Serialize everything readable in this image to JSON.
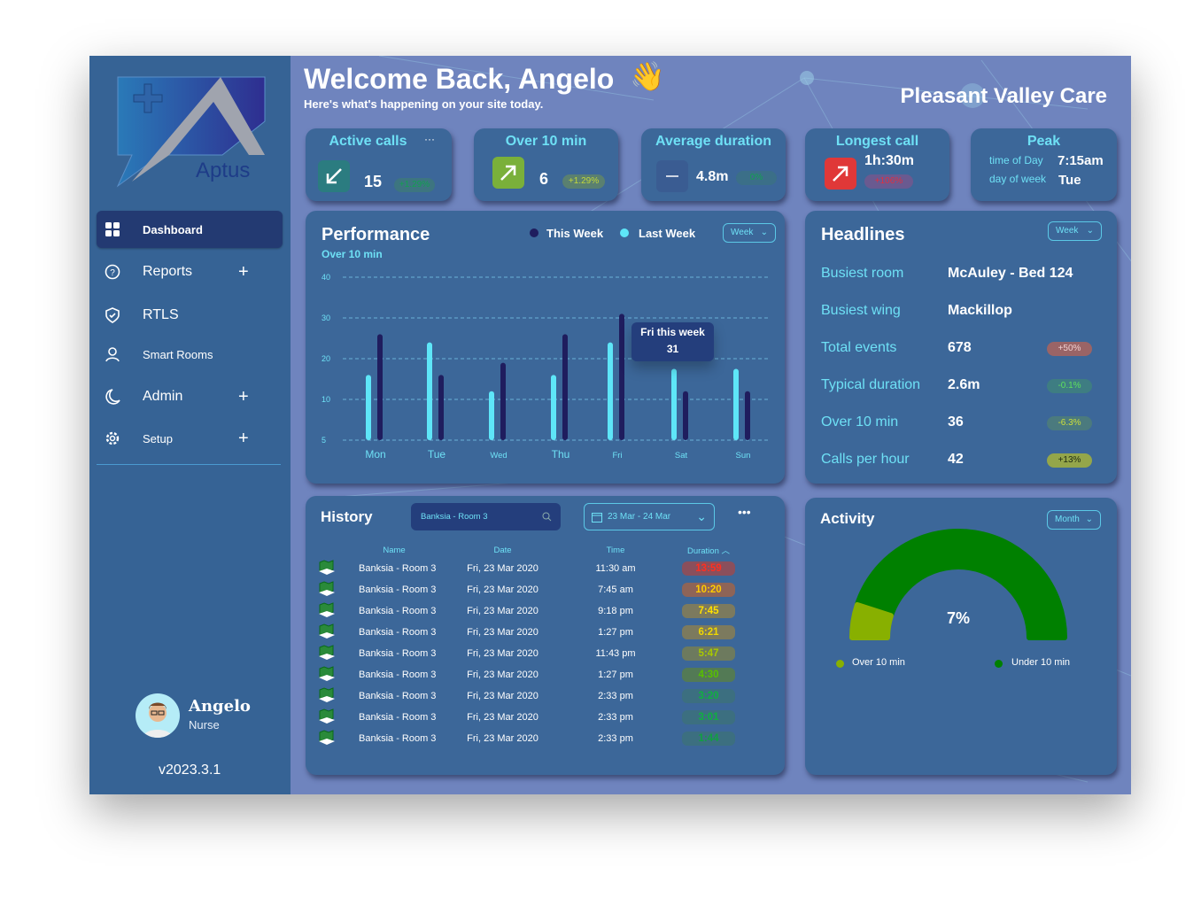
{
  "brand": {
    "logo_text": "Aptus"
  },
  "sidebar": {
    "items": [
      {
        "label": "Dashboard",
        "icon": "grid-icon",
        "active": true
      },
      {
        "label": "Reports",
        "icon": "help-circle-icon",
        "expandable": true
      },
      {
        "label": "RTLS",
        "icon": "shield-check-icon"
      },
      {
        "label": "Smart Rooms",
        "icon": "user-icon"
      },
      {
        "label": "Admin",
        "icon": "moon-icon",
        "expandable": true
      },
      {
        "label": "Setup",
        "icon": "gear-icon",
        "expandable": true
      }
    ],
    "plus": "+",
    "user": {
      "name": "Angelo",
      "role": "Nurse"
    },
    "version": "v2023.3.1"
  },
  "header": {
    "title": "Welcome Back, Angelo",
    "emoji": "👋",
    "subtitle": "Here's what's happening on your site today.",
    "site": "Pleasant Valley Care"
  },
  "kpis": {
    "active_calls": {
      "title": "Active calls",
      "more": "···",
      "value": "15",
      "change": "+1.29%",
      "trend": "down"
    },
    "over10": {
      "title": "Over 10 min",
      "value": "6",
      "change": "+1.29%",
      "trend": "up"
    },
    "avg": {
      "title": "Average duration",
      "value": "4.8m",
      "change": "0%",
      "trend": "flat"
    },
    "longest": {
      "title": "Longest call",
      "value": "1h:30m",
      "change": "+106%",
      "trend": "up"
    },
    "peak": {
      "title": "Peak",
      "time_label": "time of Day",
      "time": "7:15am",
      "day_label": "day of week",
      "day": "Tue"
    }
  },
  "performance": {
    "title": "Performance",
    "subtitle": "Over 10 min",
    "range": "Week",
    "tooltip": {
      "label": "Fri this week",
      "value": "31"
    }
  },
  "chart_data": {
    "type": "bar",
    "categories": [
      "Mon",
      "Tue",
      "Wed",
      "Thu",
      "Fri",
      "Sat",
      "Sun"
    ],
    "series": [
      {
        "name": "This Week",
        "color": "#1f1d5e",
        "values": [
          26,
          16,
          19,
          26,
          31,
          12,
          12
        ]
      },
      {
        "name": "Last Week",
        "color": "#5ee6f8",
        "values": [
          16,
          24,
          12,
          16,
          24,
          17.5,
          17.5
        ]
      }
    ],
    "ytick_labels": [
      "40",
      "30",
      "20",
      "10",
      "5"
    ],
    "ylim": [
      0,
      40
    ],
    "grid": true,
    "legend": "top"
  },
  "headlines": {
    "title": "Headlines",
    "range": "Week",
    "rows": [
      {
        "label": "Busiest room",
        "value": "McAuley - Bed 124"
      },
      {
        "label": "Busiest wing",
        "value": "Mackillop"
      },
      {
        "label": "Total events",
        "value": "678",
        "change": "+50%",
        "bg": "#9a6466",
        "fg": "#f0d0d0"
      },
      {
        "label": "Typical duration",
        "value": "2.6m",
        "change": "-0.1%",
        "bg": "#3e7d82",
        "fg": "#5ee05e"
      },
      {
        "label": "Over 10 min",
        "value": "36",
        "change": "-6.3%",
        "bg": "#4b7a7e",
        "fg": "#cde03a"
      },
      {
        "label": "Calls per hour",
        "value": "42",
        "change": "+13%",
        "bg": "#94a64a",
        "fg": "#1d2a10"
      }
    ]
  },
  "history": {
    "title": "History",
    "search": "Banksia - Room 3",
    "date_range": "23 Mar - 24 Mar",
    "more": "•••",
    "columns": [
      "Name",
      "Date",
      "Time",
      "Duration"
    ],
    "rows": [
      {
        "name": "Banksia - Room 3",
        "date": "Fri, 23 Mar 2020",
        "time": "11:30 am",
        "duration": "13:59",
        "bg": "#8a4f5c",
        "fg": "#ff3020"
      },
      {
        "name": "Banksia - Room 3",
        "date": "Fri, 23 Mar 2020",
        "time": "7:45 am",
        "duration": "10:20",
        "bg": "#8e6457",
        "fg": "#ffcc00"
      },
      {
        "name": "Banksia - Room 3",
        "date": "Fri, 23 Mar 2020",
        "time": "9:18 pm",
        "duration": "7:45",
        "bg": "#7c7a5e",
        "fg": "#ffe000"
      },
      {
        "name": "Banksia - Room 3",
        "date": "Fri, 23 Mar 2020",
        "time": "1:27 pm",
        "duration": "6:21",
        "bg": "#7c7a5e",
        "fg": "#f0d800"
      },
      {
        "name": "Banksia - Room 3",
        "date": "Fri, 23 Mar 2020",
        "time": "11:43 pm",
        "duration": "5:47",
        "bg": "#6d7a5e",
        "fg": "#a8c800"
      },
      {
        "name": "Banksia - Room 3",
        "date": "Fri, 23 Mar 2020",
        "time": "1:27 pm",
        "duration": "4:30",
        "bg": "#537a55",
        "fg": "#58c000"
      },
      {
        "name": "Banksia - Room 3",
        "date": "Fri, 23 Mar 2020",
        "time": "2:33 pm",
        "duration": "3:20",
        "bg": "#3c6f80",
        "fg": "#10b040"
      },
      {
        "name": "Banksia - Room 3",
        "date": "Fri, 23 Mar 2020",
        "time": "2:33 pm",
        "duration": "3:01",
        "bg": "#3c6f80",
        "fg": "#10b040"
      },
      {
        "name": "Banksia - Room 3",
        "date": "Fri, 23 Mar 2020",
        "time": "2:33 pm",
        "duration": "1:44",
        "bg": "#3c6f80",
        "fg": "#10a040"
      }
    ]
  },
  "activity": {
    "title": "Activity",
    "range": "Month",
    "percent": "7%",
    "over_fraction": 0.07,
    "legend": [
      {
        "label": "Over 10 min",
        "color": "#88b000"
      },
      {
        "label": "Under 10 min",
        "color": "#008000"
      }
    ]
  }
}
